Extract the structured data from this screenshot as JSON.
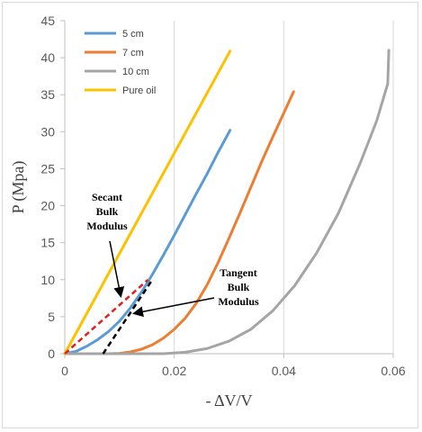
{
  "chart_data": {
    "type": "line",
    "title": "",
    "xlabel": "- ΔV/V",
    "ylabel": "P (Mpa)",
    "xlim": [
      0,
      0.06
    ],
    "ylim": [
      0,
      45
    ],
    "xticks": [
      0,
      0.02,
      0.04,
      0.06
    ],
    "xtick_labels": [
      "0",
      "0.02",
      "0.04",
      "0.06"
    ],
    "yticks": [
      0,
      5,
      10,
      15,
      20,
      25,
      30,
      35,
      40,
      45
    ],
    "ytick_labels": [
      "0",
      "5",
      "10",
      "15",
      "20",
      "25",
      "30",
      "35",
      "40",
      "45"
    ],
    "grid": "vertical",
    "legend_position": "top-left",
    "series": [
      {
        "name": "5 cm",
        "color": "#5b9bd5",
        "points": [
          [
            0,
            0
          ],
          [
            0.002,
            0.3
          ],
          [
            0.004,
            1
          ],
          [
            0.006,
            1.9
          ],
          [
            0.008,
            3
          ],
          [
            0.01,
            4.4
          ],
          [
            0.012,
            6.2
          ],
          [
            0.014,
            8.3
          ],
          [
            0.016,
            10.7
          ],
          [
            0.018,
            13.3
          ],
          [
            0.02,
            16
          ],
          [
            0.022,
            18.8
          ],
          [
            0.024,
            21.6
          ],
          [
            0.026,
            24.3
          ],
          [
            0.028,
            27.2
          ],
          [
            0.0302,
            30.2
          ]
        ]
      },
      {
        "name": "7 cm",
        "color": "#ed7d31",
        "points": [
          [
            0,
            0
          ],
          [
            0.008,
            0
          ],
          [
            0.01,
            0.05
          ],
          [
            0.012,
            0.25
          ],
          [
            0.014,
            0.6
          ],
          [
            0.016,
            1.2
          ],
          [
            0.018,
            2.1
          ],
          [
            0.02,
            3.3
          ],
          [
            0.022,
            4.8
          ],
          [
            0.024,
            6.8
          ],
          [
            0.026,
            9.3
          ],
          [
            0.028,
            12.3
          ],
          [
            0.03,
            15.6
          ],
          [
            0.032,
            19
          ],
          [
            0.034,
            22.5
          ],
          [
            0.036,
            26
          ],
          [
            0.038,
            29.3
          ],
          [
            0.04,
            32.5
          ],
          [
            0.0418,
            35.4
          ]
        ]
      },
      {
        "name": "10 cm",
        "color": "#a5a5a5",
        "points": [
          [
            0,
            0
          ],
          [
            0.018,
            0
          ],
          [
            0.022,
            0.2
          ],
          [
            0.026,
            0.7
          ],
          [
            0.03,
            1.7
          ],
          [
            0.034,
            3.3
          ],
          [
            0.038,
            5.8
          ],
          [
            0.042,
            9.2
          ],
          [
            0.046,
            13.6
          ],
          [
            0.05,
            19
          ],
          [
            0.054,
            25.8
          ],
          [
            0.057,
            31.5
          ],
          [
            0.059,
            36.5
          ],
          [
            0.0592,
            41
          ]
        ]
      },
      {
        "name": "Pure oil",
        "color": "#ffc000",
        "points": [
          [
            0,
            0
          ],
          [
            0.0302,
            40.9
          ]
        ]
      }
    ],
    "annotations": [
      {
        "text_lines": [
          "Secant",
          "Bulk",
          "Modulus"
        ]
      },
      {
        "text_lines": [
          "Tangent",
          "Bulk",
          "Modulus"
        ]
      }
    ],
    "reference_lines": [
      {
        "name": "secant",
        "color": "#e02020",
        "style": "dashed",
        "points": [
          [
            0,
            0
          ],
          [
            0.0152,
            10
          ]
        ]
      },
      {
        "name": "tangent",
        "color": "#000000",
        "style": "dashed",
        "points": [
          [
            0.007,
            0
          ],
          [
            0.016,
            10
          ]
        ]
      }
    ]
  }
}
